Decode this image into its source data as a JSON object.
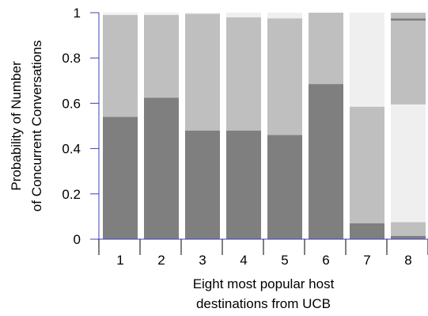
{
  "chart_data": {
    "type": "bar",
    "stacked": true,
    "categories": [
      "1",
      "2",
      "3",
      "4",
      "5",
      "6",
      "7",
      "8"
    ],
    "series": [
      {
        "values": [
          0.54,
          0.625,
          0.48,
          0.48,
          0.46,
          0.685,
          0.07,
          0.015
        ]
      },
      {
        "values": [
          0.45,
          0.365,
          0.515,
          0.5,
          0.515,
          0.315,
          0.515,
          0.06
        ]
      },
      {
        "values": [
          0.01,
          0.01,
          0.005,
          0.02,
          0.025,
          0.0,
          0.415,
          0.52
        ]
      },
      {
        "values": [
          0.0,
          0.0,
          0.0,
          0.0,
          0.0,
          0.0,
          0.0,
          0.37
        ]
      },
      {
        "values": [
          0.0,
          0.0,
          0.0,
          0.0,
          0.0,
          0.0,
          0.0,
          0.01
        ]
      },
      {
        "values": [
          0.0,
          0.0,
          0.0,
          0.0,
          0.0,
          0.0,
          0.0,
          0.025
        ]
      }
    ],
    "colors": [
      "#7f7f7f",
      "#bfbfbf",
      "#efefef",
      "#bfbfbf",
      "#7f7f7f",
      "#bfbfbf"
    ],
    "ylabel_lines": [
      "Probability of Number",
      "of Concurrent Conversations"
    ],
    "xlabel_lines": [
      "Eight most popular host",
      "destinations from UCB"
    ],
    "yticks": [
      0,
      0.2,
      0.4,
      0.6,
      0.8,
      1
    ],
    "ytick_labels": [
      "0",
      "0.2",
      "0.4",
      "0.6",
      "0.8",
      "1"
    ],
    "ylim": [
      0,
      1
    ],
    "axis_color": "#3f3fbf",
    "grid": false
  }
}
